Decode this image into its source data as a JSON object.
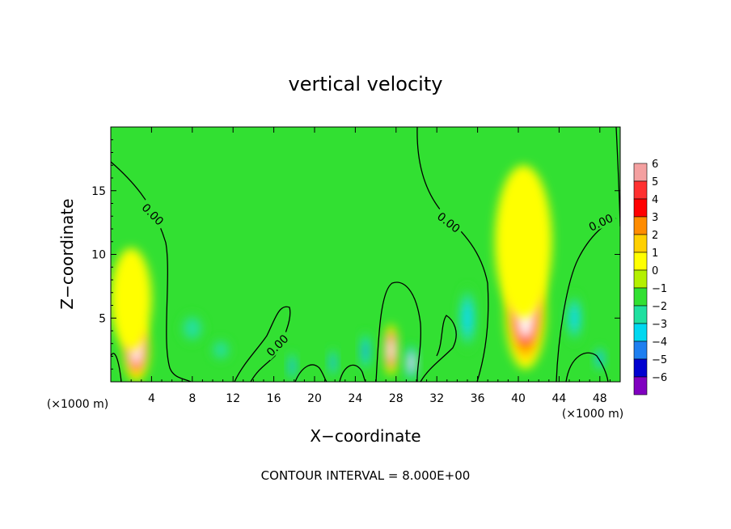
{
  "chart_data": {
    "type": "heatmap",
    "title": "vertical velocity",
    "xlabel": "X−coordinate",
    "ylabel": "Z−coordinate",
    "x_unit": "(×1000 m)",
    "xlim": [
      0,
      50
    ],
    "ylim": [
      0,
      20
    ],
    "x_ticks": [
      4,
      8,
      12,
      16,
      20,
      24,
      28,
      32,
      36,
      40,
      44,
      48
    ],
    "y_ticks": [
      5,
      10,
      15
    ],
    "colorbar": {
      "levels": [
        6,
        5,
        4,
        3,
        2,
        1,
        0,
        -1,
        -2,
        -3,
        -4,
        -5,
        -6
      ],
      "labels": [
        "6",
        "5",
        "4",
        "3",
        "2",
        "1",
        "0",
        "−1",
        "−2",
        "−3",
        "−4",
        "−5",
        "−6"
      ],
      "colors": [
        "#f4a0a0",
        "#ff3030",
        "#ff0000",
        "#ff8c00",
        "#ffd000",
        "#ffff00",
        "#b4f000",
        "#32e032",
        "#20e0a0",
        "#00d8f0",
        "#1e7ff0",
        "#0000d0",
        "#8000c0"
      ]
    },
    "background_color": "#32e032",
    "contour_label": "0.00",
    "contour_interval_text": "CONTOUR INTERVAL = 8.000E+00",
    "cells": [
      {
        "x": 2.5,
        "z": 2.5,
        "value": 6,
        "rx": 1.3,
        "rz": 2.5
      },
      {
        "x": 2.0,
        "z": 6.5,
        "value": 1,
        "rx": 2.0,
        "rz": 4.0
      },
      {
        "x": 8.0,
        "z": 4.2,
        "value": -2,
        "rx": 1.2,
        "rz": 1.2
      },
      {
        "x": 10.8,
        "z": 2.5,
        "value": -2,
        "rx": 1.0,
        "rz": 0.9
      },
      {
        "x": 17.8,
        "z": 1.2,
        "value": -4,
        "rx": 0.4,
        "rz": 1.2
      },
      {
        "x": 21.8,
        "z": 1.5,
        "value": -4,
        "rx": 0.4,
        "rz": 1.2
      },
      {
        "x": 25.0,
        "z": 2.4,
        "value": -4,
        "rx": 0.5,
        "rz": 1.6
      },
      {
        "x": 27.5,
        "z": 2.5,
        "value": 6,
        "rx": 0.7,
        "rz": 2.0
      },
      {
        "x": 29.5,
        "z": 1.5,
        "value": -6,
        "rx": 0.6,
        "rz": 1.5
      },
      {
        "x": 35.0,
        "z": 5.0,
        "value": -3,
        "rx": 0.9,
        "rz": 2.6
      },
      {
        "x": 40.7,
        "z": 5.5,
        "value": 6,
        "rx": 2.0,
        "rz": 4.5
      },
      {
        "x": 40.5,
        "z": 11.0,
        "value": 1,
        "rx": 2.8,
        "rz": 6.0
      },
      {
        "x": 45.5,
        "z": 5.0,
        "value": -3,
        "rx": 0.8,
        "rz": 2.0
      },
      {
        "x": 48.0,
        "z": 1.8,
        "value": -4,
        "rx": 0.5,
        "rz": 1.0
      }
    ]
  }
}
